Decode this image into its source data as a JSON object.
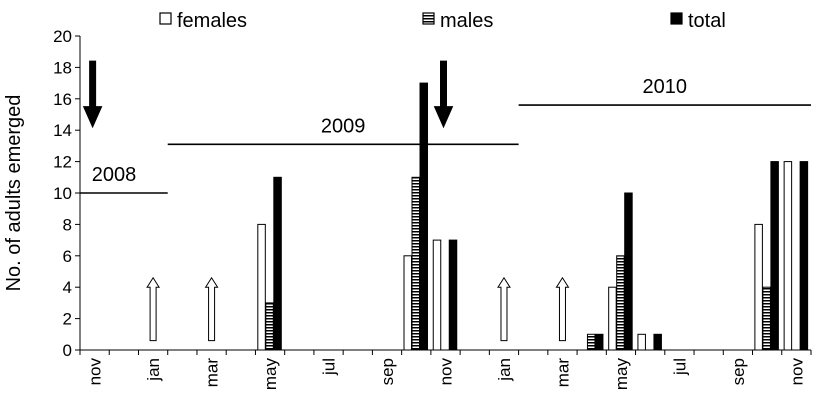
{
  "chart_data": {
    "type": "bar",
    "ylabel": "No. of adults emerged",
    "ylim": [
      0,
      20
    ],
    "yticks": [
      0,
      2,
      4,
      6,
      8,
      10,
      12,
      14,
      16,
      18,
      20
    ],
    "grid": false,
    "legend_position": "top",
    "tick_labels": [
      "nov",
      "jan",
      "mar",
      "may",
      "jul",
      "sep",
      "nov",
      "jan",
      "mar",
      "may",
      "jul",
      "sep",
      "nov"
    ],
    "months": [
      "Nov 2008",
      "Dec 2008",
      "Jan 2009",
      "Feb 2009",
      "Mar 2009",
      "Apr 2009",
      "May 2009",
      "Jun 2009",
      "Jul 2009",
      "Aug 2009",
      "Sep 2009",
      "Oct 2009",
      "Nov 2009",
      "Dec 2009",
      "Jan 2010",
      "Feb 2010",
      "Mar 2010",
      "Apr 2010",
      "May 2010",
      "Jun 2010",
      "Jul 2010",
      "Aug 2010",
      "Sep 2010",
      "Oct 2010",
      "Nov 2010"
    ],
    "series": [
      {
        "name": "females",
        "style": "white",
        "values": [
          0,
          0,
          0,
          0,
          0,
          0,
          8,
          0,
          0,
          0,
          0,
          6,
          7,
          0,
          0,
          0,
          0,
          0,
          4,
          1,
          0,
          0,
          0,
          8,
          12
        ]
      },
      {
        "name": "males",
        "style": "striped",
        "values": [
          0,
          0,
          0,
          0,
          0,
          0,
          3,
          0,
          0,
          0,
          0,
          11,
          0,
          0,
          0,
          0,
          0,
          1,
          6,
          0,
          0,
          0,
          0,
          4,
          0
        ]
      },
      {
        "name": "total",
        "style": "black",
        "values": [
          0,
          0,
          0,
          0,
          0,
          0,
          11,
          0,
          0,
          0,
          0,
          17,
          7,
          0,
          0,
          0,
          0,
          1,
          10,
          1,
          0,
          0,
          0,
          12,
          12
        ]
      }
    ],
    "year_spans": [
      {
        "label": "2008",
        "y": 10
      },
      {
        "label": "2009",
        "y": 13.1
      },
      {
        "label": "2010",
        "y": 15.6
      }
    ],
    "black_arrow_months": [
      "Nov 2008",
      "Nov 2009"
    ],
    "open_arrow_months": [
      "Jan 2009",
      "Mar 2009",
      "Jan 2010",
      "Mar 2010"
    ],
    "colors": {
      "black": "#000000",
      "white": "#ffffff"
    }
  }
}
